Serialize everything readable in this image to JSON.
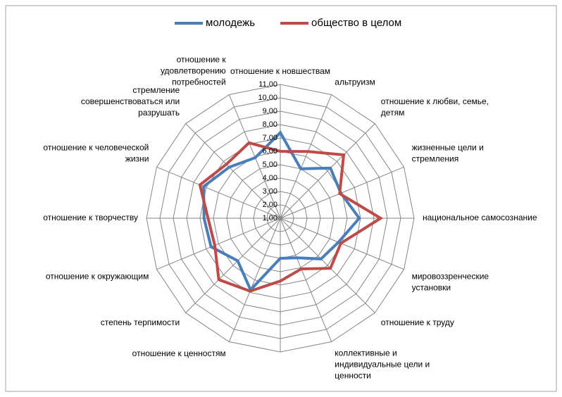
{
  "chart_data": {
    "type": "radar",
    "categories": [
      "отношение к новшествам",
      "альтруизм",
      "отношение к любви, семье,\nдетям",
      "жизненные цели и\nстремления",
      "национальное самосознание",
      "мировоззренческие\nустановки",
      "отношение к труду",
      "коллективные и\nиндивидуальные цели и\nценности",
      null,
      "отношение к ценностям",
      "степень терпимости",
      "отношение к окружающим",
      "отношение к творчеству",
      "отношение к человеческой\nжизни",
      "стремление\nсовершенствоваться или\nразрушать",
      "отношение к\nудовлетворению\nпотребностей"
    ],
    "series": [
      {
        "name": "молодежь",
        "color": "#4a7ebb",
        "values": [
          7.4,
          5.0,
          6.3,
          5.9,
          6.9,
          5.7,
          5.3,
          4.2,
          4.0,
          6.8,
          5.5,
          6.6,
          6.7,
          7.2,
          6.4,
          5.9
        ]
      },
      {
        "name": "общество в целом",
        "color": "#be4b48",
        "values": [
          6.0,
          6.4,
          7.7,
          5.8,
          8.5,
          5.9,
          6.3,
          5.1,
          5.7,
          6.9,
          7.5,
          6.3,
          6.4,
          7.5,
          6.7,
          7.1
        ]
      }
    ],
    "ylim": [
      1,
      11
    ],
    "yticks": [
      {
        "value": 1,
        "label": "1,00"
      },
      {
        "value": 2,
        "label": "2,00"
      },
      {
        "value": 3,
        "label": "3,00"
      },
      {
        "value": 4,
        "label": "4,00"
      },
      {
        "value": 5,
        "label": "5,00"
      },
      {
        "value": 6,
        "label": "6,00"
      },
      {
        "value": 7,
        "label": "7,00"
      },
      {
        "value": 8,
        "label": "8,00"
      },
      {
        "value": 9,
        "label": "9,00"
      },
      {
        "value": 10,
        "label": "10,00"
      },
      {
        "value": 11,
        "label": "11,00"
      }
    ],
    "grid": true,
    "legend": "top"
  }
}
